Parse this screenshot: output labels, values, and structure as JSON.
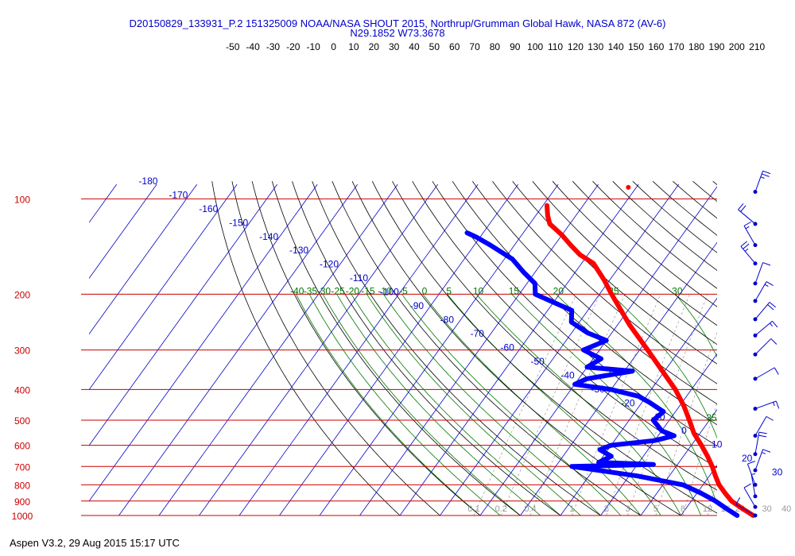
{
  "header": {
    "title": "D20150829_133931_P.2 151325009 NOAA/NASA SHOUT 2015, Northrup/Grumman Global Hawk, NASA 872 (AV-6)",
    "location": "N29.1852 W73.3678"
  },
  "footer": {
    "software": "Aspen V3.2, 29 Aug 2015  15:17 UTC"
  },
  "colors": {
    "isobar": "#cc0000",
    "isotherm": "#0000cc",
    "temperature": "#ff0000",
    "dewpoint": "#0000ff",
    "dry_adiabat": "#000000",
    "moist_adiabat": "#007700",
    "mixing_ratio": "#999999",
    "wind": "#0000cc"
  },
  "chart_data": {
    "type": "skew-t",
    "pressure_levels_hpa": [
      100,
      200,
      300,
      400,
      500,
      600,
      700,
      800,
      900,
      1000
    ],
    "pressure_labels": [
      "100",
      "200",
      "300",
      "400",
      "500",
      "600",
      "700",
      "800",
      "900",
      "1000"
    ],
    "top_scale_labels": [
      "-50",
      "-40",
      "-30",
      "-20",
      "-10",
      "0",
      "10",
      "20",
      "30",
      "40",
      "50",
      "60",
      "70",
      "80",
      "90",
      "100",
      "110",
      "120",
      "130",
      "140",
      "150",
      "160",
      "170",
      "180",
      "190",
      "200",
      "210"
    ],
    "isotherm_labels": [
      "-180",
      "-170",
      "-160",
      "-150",
      "-140",
      "-130",
      "-120",
      "-110",
      "-100",
      "-90",
      "-80",
      "-70",
      "-60",
      "-50",
      "-40",
      "-30",
      "-20",
      "-10",
      "0",
      "10",
      "20",
      "30",
      "40"
    ],
    "moist_adiabat_labels": [
      "-40",
      "-35",
      "-30",
      "-25",
      "-20",
      "-15",
      "-10",
      "-5",
      "0",
      "5",
      "10",
      "15",
      "20",
      "25",
      "30",
      "35"
    ],
    "mixing_ratio_labels": [
      "0.1",
      "0.2",
      "0.4",
      "1",
      "2",
      "3",
      "5",
      "8",
      "12",
      "16",
      "20",
      "30",
      "40"
    ],
    "temperature": [
      {
        "p": 1000,
        "t": 28.0
      },
      {
        "p": 950,
        "t": 24.0
      },
      {
        "p": 900,
        "t": 20.0
      },
      {
        "p": 850,
        "t": 17.0
      },
      {
        "p": 800,
        "t": 14.0
      },
      {
        "p": 750,
        "t": 11.5
      },
      {
        "p": 700,
        "t": 9.0
      },
      {
        "p": 650,
        "t": 6.0
      },
      {
        "p": 600,
        "t": 2.5
      },
      {
        "p": 550,
        "t": -1.5
      },
      {
        "p": 500,
        "t": -5.0
      },
      {
        "p": 450,
        "t": -9.0
      },
      {
        "p": 400,
        "t": -14.0
      },
      {
        "p": 350,
        "t": -20.5
      },
      {
        "p": 300,
        "t": -28.0
      },
      {
        "p": 250,
        "t": -37.0
      },
      {
        "p": 200,
        "t": -47.0
      },
      {
        "p": 180,
        "t": -51.5
      },
      {
        "p": 160,
        "t": -57.0
      },
      {
        "p": 150,
        "t": -62.0
      },
      {
        "p": 140,
        "t": -66.0
      },
      {
        "p": 130,
        "t": -70.0
      },
      {
        "p": 120,
        "t": -75.0
      },
      {
        "p": 113,
        "t": -77.0
      },
      {
        "p": 105,
        "t": -79.0
      }
    ],
    "temperature_outlier": {
      "p": 92,
      "t": -62.0
    },
    "dewpoint": [
      {
        "p": 1000,
        "td": 24.0
      },
      {
        "p": 950,
        "td": 20.0
      },
      {
        "p": 900,
        "td": 16.0
      },
      {
        "p": 850,
        "td": 11.0
      },
      {
        "p": 800,
        "td": 5.0
      },
      {
        "p": 750,
        "td": -8.0
      },
      {
        "p": 700,
        "td": -26.0
      },
      {
        "p": 690,
        "td": -6.0
      },
      {
        "p": 680,
        "td": -20.0
      },
      {
        "p": 650,
        "td": -18.0
      },
      {
        "p": 620,
        "td": -22.0
      },
      {
        "p": 600,
        "td": -20.0
      },
      {
        "p": 580,
        "td": -10.0
      },
      {
        "p": 560,
        "td": -6.0
      },
      {
        "p": 540,
        "td": -10.0
      },
      {
        "p": 500,
        "td": -14.0
      },
      {
        "p": 470,
        "td": -13.0
      },
      {
        "p": 440,
        "td": -18.0
      },
      {
        "p": 420,
        "td": -22.0
      },
      {
        "p": 400,
        "td": -30.0
      },
      {
        "p": 385,
        "td": -40.0
      },
      {
        "p": 370,
        "td": -38.0
      },
      {
        "p": 350,
        "td": -28.0
      },
      {
        "p": 340,
        "td": -40.0
      },
      {
        "p": 320,
        "td": -38.0
      },
      {
        "p": 300,
        "td": -44.0
      },
      {
        "p": 280,
        "td": -40.0
      },
      {
        "p": 265,
        "td": -46.0
      },
      {
        "p": 245,
        "td": -52.0
      },
      {
        "p": 225,
        "td": -54.0
      },
      {
        "p": 200,
        "td": -66.0
      },
      {
        "p": 185,
        "td": -68.0
      },
      {
        "p": 170,
        "td": -73.0
      },
      {
        "p": 155,
        "td": -78.0
      },
      {
        "p": 140,
        "td": -86.0
      },
      {
        "p": 132,
        "td": -91.0
      },
      {
        "p": 128,
        "td": -94.0
      }
    ],
    "winds": [
      {
        "p": 95,
        "dir": 20,
        "spd": 25
      },
      {
        "p": 120,
        "dir": 310,
        "spd": 20
      },
      {
        "p": 140,
        "dir": 330,
        "spd": 15
      },
      {
        "p": 160,
        "dir": 320,
        "spd": 25
      },
      {
        "p": 185,
        "dir": 20,
        "spd": 10
      },
      {
        "p": 210,
        "dir": 30,
        "spd": 15
      },
      {
        "p": 240,
        "dir": 40,
        "spd": 20
      },
      {
        "p": 270,
        "dir": 50,
        "spd": 15
      },
      {
        "p": 310,
        "dir": 45,
        "spd": 10
      },
      {
        "p": 370,
        "dir": 60,
        "spd": 10
      },
      {
        "p": 460,
        "dir": 70,
        "spd": 15
      },
      {
        "p": 560,
        "dir": 30,
        "spd": 10
      },
      {
        "p": 640,
        "dir": 10,
        "spd": 20
      },
      {
        "p": 720,
        "dir": 20,
        "spd": 15
      },
      {
        "p": 800,
        "dir": 340,
        "spd": 10
      },
      {
        "p": 870,
        "dir": 350,
        "spd": 5
      },
      {
        "p": 940,
        "dir": 330,
        "spd": 10
      },
      {
        "p": 1000,
        "dir": 300,
        "spd": 10
      }
    ]
  }
}
